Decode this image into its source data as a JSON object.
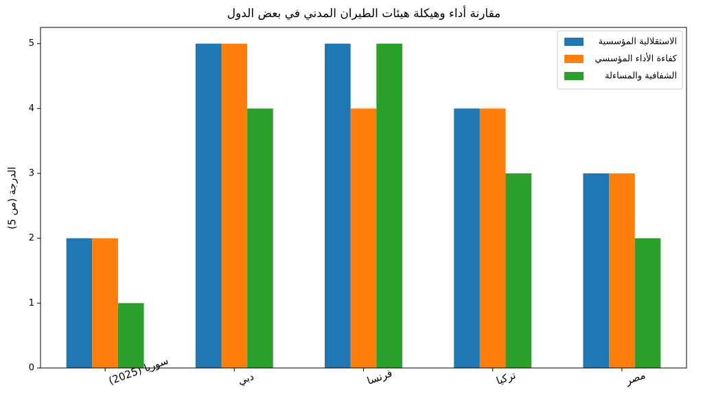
{
  "chart_data": {
    "type": "bar",
    "title": "مقارنة أداء وهيكلة هيئات الطيران المدني في بعض الدول",
    "ylabel": "الدرجة (من 5)",
    "categories": [
      "سوريا (2025)",
      "دبي",
      "فرنسا",
      "تركيا",
      "مصر"
    ],
    "series": [
      {
        "name": "الاستقلالية المؤسسية",
        "color": "#1f77b4",
        "values": [
          2,
          5,
          5,
          4,
          3
        ]
      },
      {
        "name": "كفاءة الأداء المؤسسي",
        "color": "#ff7f0e",
        "values": [
          2,
          5,
          4,
          4,
          3
        ]
      },
      {
        "name": "الشفافية والمساءلة",
        "color": "#2ca02c",
        "values": [
          1,
          4,
          5,
          3,
          2
        ]
      }
    ],
    "ylim": [
      0,
      5.25
    ],
    "yticks": [
      0,
      1,
      2,
      3,
      4,
      5
    ],
    "grid": false,
    "legend": "upper right"
  }
}
